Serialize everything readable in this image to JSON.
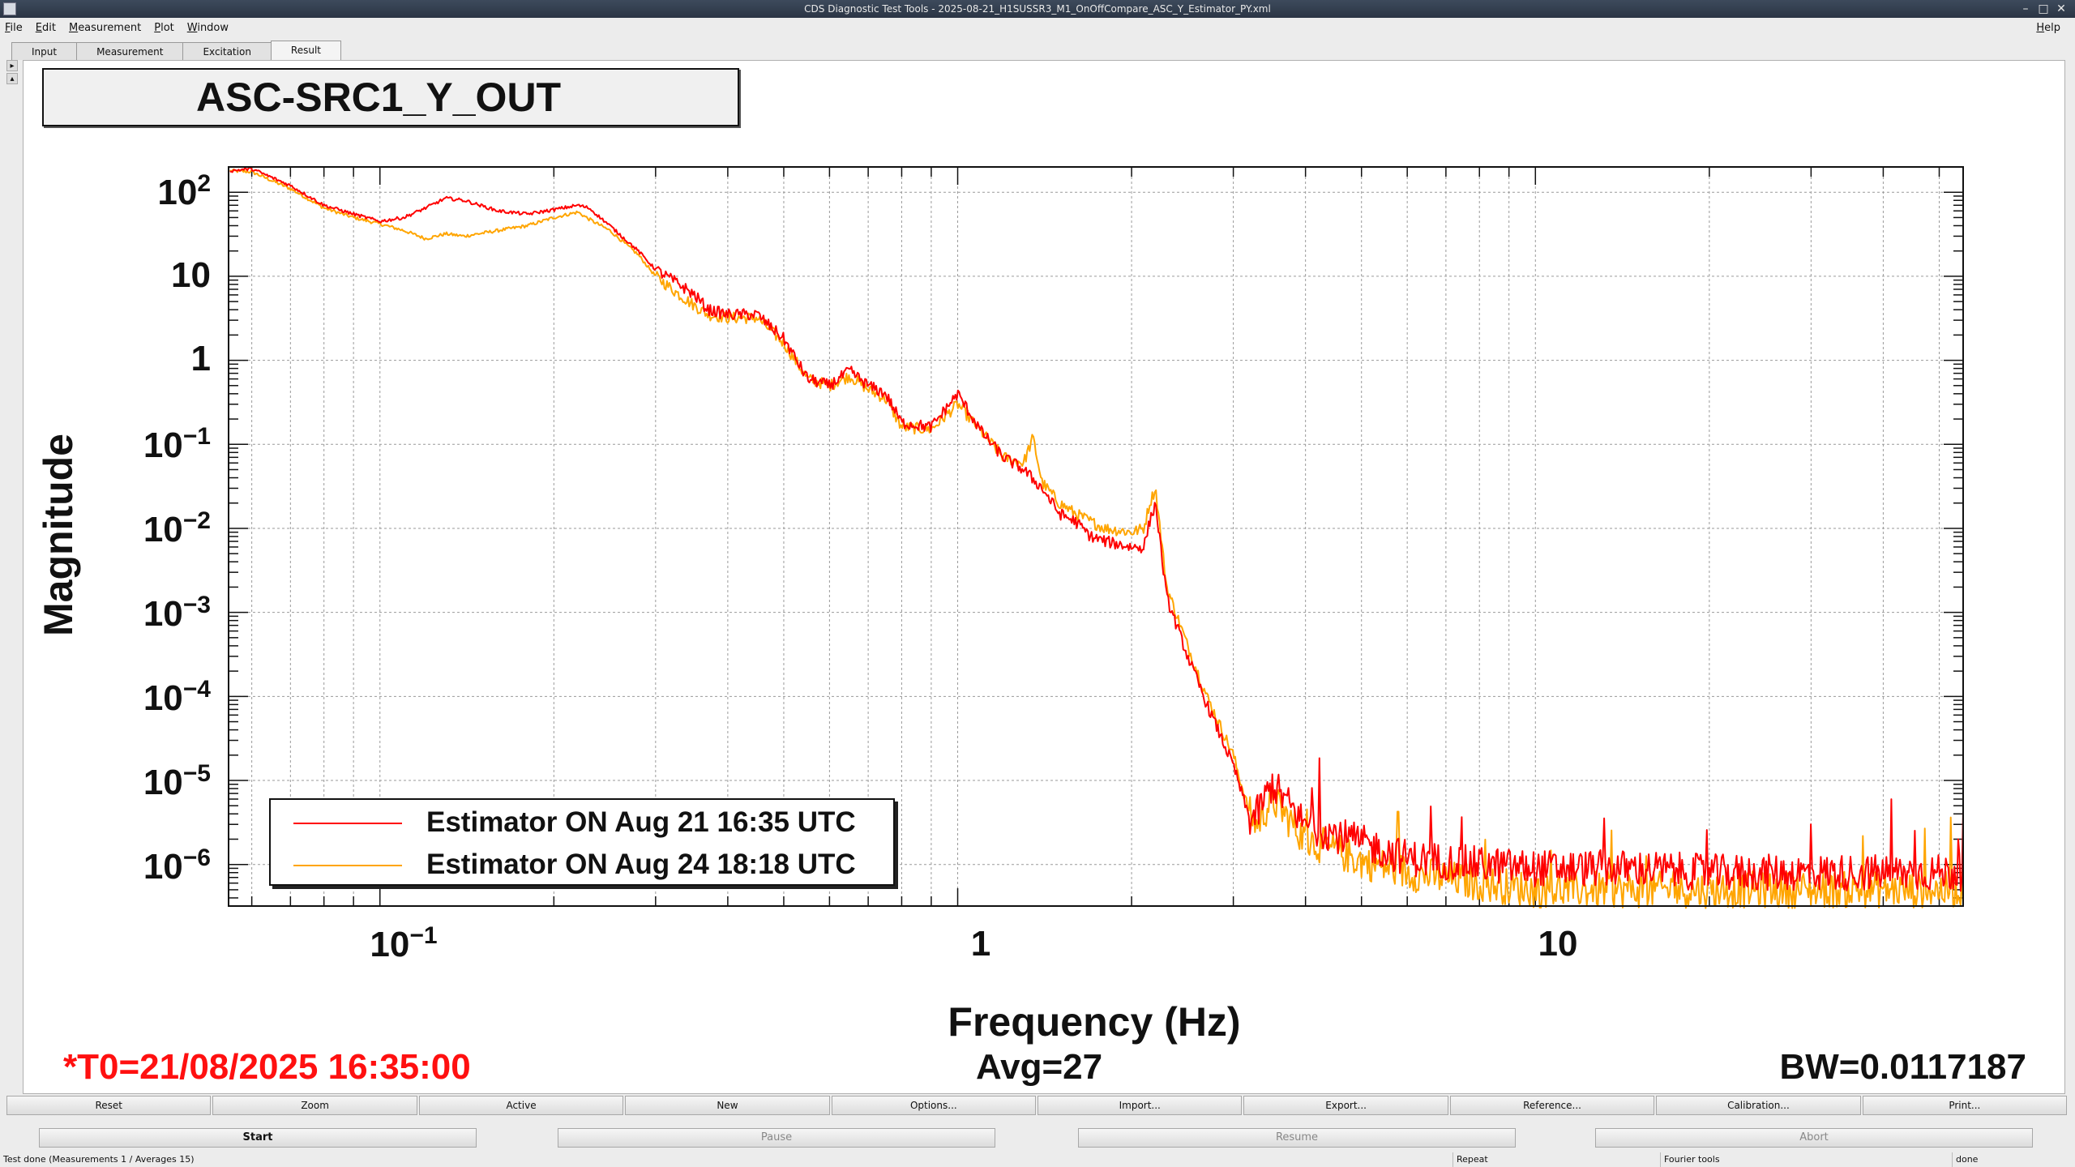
{
  "window": {
    "title": "CDS Diagnostic Test Tools - 2025-08-21_H1SUSSR3_M1_OnOffCompare_ASC_Y_Estimator_PY.xml"
  },
  "menu": {
    "items": [
      "File",
      "Edit",
      "Measurement",
      "Plot",
      "Window"
    ],
    "help": "Help"
  },
  "tabs": [
    "Input",
    "Measurement",
    "Excitation",
    "Result"
  ],
  "active_tab": "Result",
  "plot": {
    "title": "ASC-SRC1_Y_OUT",
    "t0": "*T0=21/08/2025 16:35:00",
    "avg": "Avg=27",
    "bw": "BW=0.0117187"
  },
  "chart_data": {
    "type": "line",
    "xlabel": "Frequency (Hz)",
    "ylabel": "Magnitude",
    "xscale": "log",
    "yscale": "log",
    "xlim": [
      0.0547,
      55
    ],
    "ylim": [
      3.2e-07,
      200
    ],
    "x_ticks": [
      "10-1",
      "1",
      "10"
    ],
    "y_ticks": [
      "102",
      "10",
      "1",
      "10-1",
      "10-2",
      "10-3",
      "10-4",
      "10-5",
      "10-6"
    ],
    "grid": true,
    "legend_position": "bottom-left",
    "series": [
      {
        "name": "Estimator ON Aug 21 16:35 UTC",
        "color": "#ff0000",
        "x": [
          0.055,
          0.06,
          0.07,
          0.08,
          0.09,
          0.1,
          0.11,
          0.12,
          0.13,
          0.14,
          0.16,
          0.18,
          0.2,
          0.22,
          0.23,
          0.25,
          0.28,
          0.3,
          0.33,
          0.35,
          0.37,
          0.4,
          0.45,
          0.5,
          0.55,
          0.6,
          0.65,
          0.7,
          0.75,
          0.8,
          0.9,
          1.0,
          1.1,
          1.2,
          1.3,
          1.4,
          1.5,
          1.6,
          1.7,
          1.8,
          2.0,
          2.1,
          2.15,
          2.2,
          2.3,
          2.5,
          2.7,
          3.0,
          3.2,
          3.3,
          3.5,
          4,
          5,
          6,
          8,
          10,
          15,
          20,
          30,
          40,
          55
        ],
        "y": [
          180,
          190,
          120,
          70,
          55,
          45,
          50,
          65,
          85,
          80,
          60,
          55,
          62,
          70,
          65,
          40,
          20,
          12,
          8,
          6,
          4,
          3.5,
          3.5,
          1.8,
          0.6,
          0.5,
          0.75,
          0.5,
          0.4,
          0.18,
          0.16,
          0.4,
          0.14,
          0.07,
          0.05,
          0.03,
          0.015,
          0.012,
          0.008,
          0.007,
          0.006,
          0.006,
          0.012,
          0.02,
          0.0015,
          0.0003,
          8e-05,
          1.5e-05,
          3.5e-06,
          4e-06,
          9e-06,
          3e-06,
          1.8e-06,
          1.2e-06,
          1e-06,
          9e-07,
          9e-07,
          8e-07,
          8e-07,
          8e-07,
          8e-07
        ]
      },
      {
        "name": "Estimator ON Aug 24 18:18 UTC",
        "color": "#ffa500",
        "x": [
          0.055,
          0.06,
          0.07,
          0.08,
          0.09,
          0.1,
          0.11,
          0.12,
          0.13,
          0.14,
          0.16,
          0.18,
          0.2,
          0.22,
          0.23,
          0.25,
          0.28,
          0.3,
          0.33,
          0.35,
          0.37,
          0.4,
          0.45,
          0.5,
          0.55,
          0.6,
          0.65,
          0.7,
          0.75,
          0.8,
          0.9,
          1.0,
          1.1,
          1.2,
          1.3,
          1.35,
          1.4,
          1.5,
          1.6,
          1.7,
          1.8,
          2.0,
          2.1,
          2.15,
          2.2,
          2.3,
          2.5,
          2.7,
          3.0,
          3.2,
          3.3,
          3.5,
          4,
          5,
          6,
          8,
          10,
          15,
          20,
          30,
          40,
          55
        ],
        "y": [
          180,
          175,
          110,
          65,
          50,
          42,
          35,
          28,
          32,
          30,
          35,
          40,
          50,
          58,
          48,
          35,
          18,
          10,
          6,
          4.5,
          3.5,
          3.2,
          3.2,
          1.6,
          0.6,
          0.5,
          0.65,
          0.45,
          0.35,
          0.16,
          0.15,
          0.3,
          0.14,
          0.07,
          0.06,
          0.12,
          0.035,
          0.02,
          0.015,
          0.012,
          0.01,
          0.009,
          0.01,
          0.02,
          0.03,
          0.002,
          0.0004,
          0.0001,
          2e-05,
          4e-06,
          3e-06,
          6e-06,
          2e-06,
          1.1e-06,
          8e-07,
          6e-07,
          5e-07,
          5e-07,
          5e-07,
          5e-07,
          5e-07,
          5e-07
        ]
      }
    ]
  },
  "buttons_row1": [
    "Reset",
    "Zoom",
    "Active",
    "New",
    "Options...",
    "Import...",
    "Export...",
    "Reference...",
    "Calibration...",
    "Print..."
  ],
  "buttons_row2": [
    "Start",
    "Pause",
    "Resume",
    "Abort"
  ],
  "statusbar": {
    "message": "Test done (Measurements 1 / Averages 15)",
    "repeat": "Repeat",
    "fourier": "Fourier tools",
    "state": "done"
  }
}
